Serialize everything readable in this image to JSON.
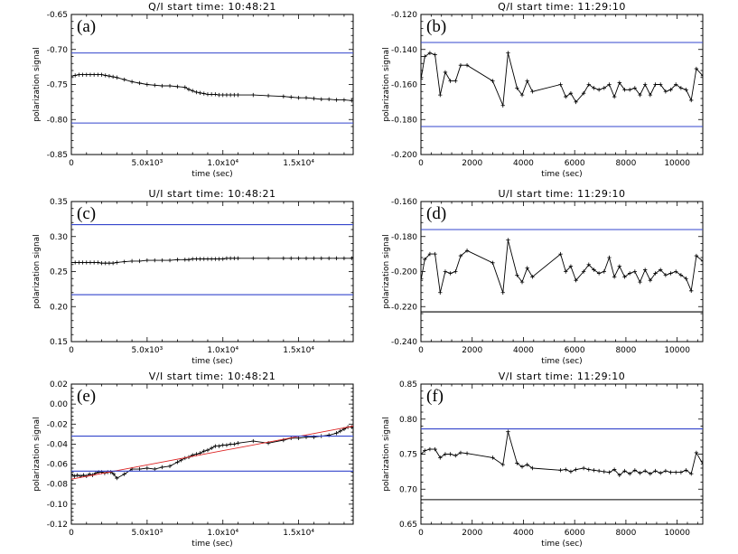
{
  "chart_data": [
    {
      "type": "line",
      "panel": "(a)",
      "title": "Q/I start time: 10:48:21",
      "xlabel": "time (sec)",
      "ylabel": "polarization signal",
      "xlim": [
        0,
        18600
      ],
      "ylim": [
        -0.85,
        -0.65
      ],
      "xticks": [
        0,
        5000,
        10000,
        15000
      ],
      "xtick_labels": [
        "0",
        "5.0x10³",
        "1.0x10⁴",
        "1.5x10⁴"
      ],
      "yticks": [
        -0.85,
        -0.8,
        -0.75,
        -0.7,
        -0.65
      ],
      "ytick_labels": [
        "-0.85",
        "-0.80",
        "-0.75",
        "-0.70",
        "-0.65"
      ],
      "series": [
        {
          "name": "data",
          "color": "#000000",
          "marker": "+",
          "x": [
            0,
            250,
            500,
            750,
            1000,
            1250,
            1500,
            1750,
            2000,
            2250,
            2500,
            2750,
            3000,
            3500,
            4000,
            4500,
            5000,
            5500,
            6000,
            6500,
            7000,
            7500,
            7750,
            8000,
            8250,
            8500,
            8750,
            9000,
            9250,
            9500,
            9750,
            10000,
            10250,
            10500,
            10750,
            11000,
            12000,
            13000,
            14000,
            14500,
            15000,
            15500,
            16000,
            16500,
            17000,
            17500,
            18000,
            18500
          ],
          "y": [
            -0.738,
            -0.737,
            -0.736,
            -0.736,
            -0.736,
            -0.736,
            -0.736,
            -0.736,
            -0.736,
            -0.737,
            -0.738,
            -0.739,
            -0.74,
            -0.743,
            -0.746,
            -0.748,
            -0.75,
            -0.751,
            -0.752,
            -0.752,
            -0.753,
            -0.754,
            -0.757,
            -0.759,
            -0.761,
            -0.762,
            -0.763,
            -0.764,
            -0.764,
            -0.764,
            -0.765,
            -0.765,
            -0.765,
            -0.765,
            -0.765,
            -0.765,
            -0.765,
            -0.766,
            -0.767,
            -0.768,
            -0.769,
            -0.769,
            -0.77,
            -0.771,
            -0.771,
            -0.772,
            -0.772,
            -0.773
          ]
        },
        {
          "name": "upper limit",
          "color": "#3344cc",
          "y_const": -0.705
        },
        {
          "name": "lower limit",
          "color": "#3344cc",
          "y_const": -0.805
        }
      ]
    },
    {
      "type": "line",
      "panel": "(b)",
      "title": "Q/I start time: 11:29:10",
      "xlabel": "time (sec)",
      "ylabel": "polarization signal",
      "xlim": [
        0,
        11000
      ],
      "ylim": [
        -0.2,
        -0.12
      ],
      "xticks": [
        0,
        2000,
        4000,
        6000,
        8000,
        10000
      ],
      "xtick_labels": [
        "0",
        "2000",
        "4000",
        "6000",
        "8000",
        "10000"
      ],
      "yticks": [
        -0.2,
        -0.18,
        -0.16,
        -0.14,
        -0.12
      ],
      "ytick_labels": [
        "-0.200",
        "-0.180",
        "-0.160",
        "-0.140",
        "-0.120"
      ],
      "series": [
        {
          "name": "data",
          "color": "#000000",
          "marker": "+",
          "x": [
            0,
            150,
            350,
            550,
            750,
            950,
            1150,
            1350,
            1550,
            1800,
            2800,
            3200,
            3400,
            3750,
            3950,
            4150,
            4350,
            5450,
            5650,
            5850,
            6050,
            6350,
            6550,
            6750,
            6950,
            7150,
            7350,
            7550,
            7750,
            7950,
            8150,
            8350,
            8550,
            8750,
            8950,
            9150,
            9350,
            9550,
            9750,
            9950,
            10150,
            10350,
            10550,
            10750,
            11000
          ],
          "y": [
            -0.157,
            -0.144,
            -0.142,
            -0.143,
            -0.166,
            -0.153,
            -0.158,
            -0.158,
            -0.149,
            -0.149,
            -0.158,
            -0.172,
            -0.142,
            -0.162,
            -0.166,
            -0.158,
            -0.164,
            -0.16,
            -0.167,
            -0.165,
            -0.17,
            -0.165,
            -0.16,
            -0.162,
            -0.163,
            -0.162,
            -0.16,
            -0.167,
            -0.159,
            -0.163,
            -0.163,
            -0.162,
            -0.166,
            -0.16,
            -0.166,
            -0.16,
            -0.16,
            -0.164,
            -0.163,
            -0.16,
            -0.162,
            -0.163,
            -0.169,
            -0.151,
            -0.155
          ]
        },
        {
          "name": "upper limit",
          "color": "#3344cc",
          "y_const": -0.136
        },
        {
          "name": "lower limit",
          "color": "#3344cc",
          "y_const": -0.184
        }
      ]
    },
    {
      "type": "line",
      "panel": "(c)",
      "title": "U/I start time: 10:48:21",
      "xlabel": "time (sec)",
      "ylabel": "polarization signal",
      "xlim": [
        0,
        18600
      ],
      "ylim": [
        0.15,
        0.35
      ],
      "xticks": [
        0,
        5000,
        10000,
        15000
      ],
      "xtick_labels": [
        "0",
        "5.0x10³",
        "1.0x10⁴",
        "1.5x10⁴"
      ],
      "yticks": [
        0.15,
        0.2,
        0.25,
        0.3,
        0.35
      ],
      "ytick_labels": [
        "0.15",
        "0.20",
        "0.25",
        "0.30",
        "0.35"
      ],
      "series": [
        {
          "name": "data",
          "color": "#000000",
          "marker": "+",
          "x": [
            0,
            250,
            500,
            750,
            1000,
            1250,
            1500,
            1750,
            2000,
            2250,
            2500,
            2750,
            3000,
            3500,
            4000,
            4500,
            5000,
            5500,
            6000,
            6500,
            7000,
            7500,
            7750,
            8000,
            8250,
            8500,
            8750,
            9000,
            9250,
            9500,
            9750,
            10000,
            10250,
            10500,
            10750,
            11000,
            12000,
            13000,
            14000,
            14500,
            15000,
            15500,
            16000,
            16500,
            17000,
            17500,
            18000,
            18500
          ],
          "y": [
            0.263,
            0.263,
            0.263,
            0.263,
            0.263,
            0.263,
            0.263,
            0.263,
            0.262,
            0.262,
            0.262,
            0.262,
            0.263,
            0.264,
            0.265,
            0.265,
            0.266,
            0.266,
            0.266,
            0.266,
            0.267,
            0.267,
            0.267,
            0.268,
            0.268,
            0.268,
            0.268,
            0.268,
            0.268,
            0.268,
            0.268,
            0.268,
            0.269,
            0.269,
            0.269,
            0.269,
            0.269,
            0.269,
            0.269,
            0.269,
            0.269,
            0.269,
            0.269,
            0.269,
            0.269,
            0.269,
            0.269,
            0.269
          ]
        },
        {
          "name": "upper limit",
          "color": "#3344cc",
          "y_const": 0.317
        },
        {
          "name": "lower limit",
          "color": "#3344cc",
          "y_const": 0.217
        }
      ]
    },
    {
      "type": "line",
      "panel": "(d)",
      "title": "U/I start time: 11:29:10",
      "xlabel": "time (sec)",
      "ylabel": "polarization signal",
      "xlim": [
        0,
        11000
      ],
      "ylim": [
        -0.24,
        -0.16
      ],
      "xticks": [
        0,
        2000,
        4000,
        6000,
        8000,
        10000
      ],
      "xtick_labels": [
        "0",
        "2000",
        "4000",
        "6000",
        "8000",
        "10000"
      ],
      "yticks": [
        -0.24,
        -0.22,
        -0.2,
        -0.18,
        -0.16
      ],
      "ytick_labels": [
        "-0.240",
        "-0.220",
        "-0.200",
        "-0.180",
        "-0.160"
      ],
      "series": [
        {
          "name": "data",
          "color": "#000000",
          "marker": "+",
          "x": [
            0,
            150,
            350,
            550,
            750,
            950,
            1150,
            1350,
            1550,
            1800,
            2800,
            3200,
            3400,
            3750,
            3950,
            4150,
            4350,
            5450,
            5650,
            5850,
            6050,
            6350,
            6550,
            6750,
            6950,
            7150,
            7350,
            7550,
            7750,
            7950,
            8150,
            8350,
            8550,
            8750,
            8950,
            9150,
            9350,
            9550,
            9750,
            9950,
            10150,
            10350,
            10550,
            10750,
            11000
          ],
          "y": [
            -0.205,
            -0.193,
            -0.19,
            -0.19,
            -0.212,
            -0.2,
            -0.201,
            -0.2,
            -0.191,
            -0.188,
            -0.195,
            -0.212,
            -0.182,
            -0.202,
            -0.206,
            -0.198,
            -0.203,
            -0.19,
            -0.2,
            -0.197,
            -0.205,
            -0.2,
            -0.196,
            -0.199,
            -0.201,
            -0.2,
            -0.192,
            -0.203,
            -0.197,
            -0.203,
            -0.201,
            -0.2,
            -0.206,
            -0.199,
            -0.205,
            -0.201,
            -0.199,
            -0.202,
            -0.201,
            -0.2,
            -0.202,
            -0.204,
            -0.211,
            -0.191,
            -0.194
          ]
        },
        {
          "name": "upper limit",
          "color": "#3344cc",
          "y_const": -0.176
        },
        {
          "name": "lower limit",
          "color": "#000000",
          "y_const": -0.223
        }
      ]
    },
    {
      "type": "line",
      "panel": "(e)",
      "title": "V/I start time: 10:48:21",
      "xlabel": "time (sec)",
      "ylabel": "polarization signal",
      "xlim": [
        0,
        18600
      ],
      "ylim": [
        -0.12,
        0.02
      ],
      "xticks": [
        0,
        5000,
        10000,
        15000
      ],
      "xtick_labels": [
        "0",
        "5.0x10³",
        "1.0x10⁴",
        "1.5x10⁴"
      ],
      "yticks": [
        -0.12,
        -0.1,
        -0.08,
        -0.06,
        -0.04,
        -0.02,
        0,
        0.02
      ],
      "ytick_labels": [
        "-0.12",
        "-0.10",
        "-0.08",
        "-0.06",
        "-0.04",
        "-0.02",
        "0.00",
        "0.02"
      ],
      "series": [
        {
          "name": "data",
          "color": "#000000",
          "marker": "+",
          "x": [
            0,
            200,
            400,
            600,
            800,
            1000,
            1200,
            1400,
            1600,
            1800,
            2000,
            2200,
            2400,
            2600,
            2800,
            3000,
            3500,
            4000,
            4500,
            5000,
            5500,
            6000,
            6500,
            7000,
            7250,
            7500,
            7750,
            8000,
            8250,
            8500,
            8750,
            9000,
            9250,
            9500,
            9750,
            10000,
            10250,
            10500,
            10750,
            11000,
            12000,
            13000,
            14000,
            14500,
            15000,
            15500,
            16000,
            16500,
            17000,
            17500,
            17750,
            18000,
            18250,
            18500
          ],
          "y": [
            -0.07,
            -0.072,
            -0.071,
            -0.072,
            -0.071,
            -0.072,
            -0.07,
            -0.071,
            -0.069,
            -0.068,
            -0.068,
            -0.069,
            -0.068,
            -0.068,
            -0.07,
            -0.074,
            -0.07,
            -0.065,
            -0.065,
            -0.064,
            -0.065,
            -0.063,
            -0.062,
            -0.058,
            -0.056,
            -0.054,
            -0.053,
            -0.051,
            -0.05,
            -0.049,
            -0.047,
            -0.046,
            -0.044,
            -0.042,
            -0.042,
            -0.041,
            -0.041,
            -0.04,
            -0.04,
            -0.039,
            -0.037,
            -0.039,
            -0.036,
            -0.034,
            -0.034,
            -0.033,
            -0.033,
            -0.032,
            -0.031,
            -0.029,
            -0.027,
            -0.025,
            -0.023,
            -0.023
          ]
        },
        {
          "name": "linear fit",
          "color": "#dd2222",
          "x": [
            0,
            18600
          ],
          "y": [
            -0.075,
            -0.022
          ]
        },
        {
          "name": "upper limit",
          "color": "#3344cc",
          "y_const": -0.032
        },
        {
          "name": "lower limit",
          "color": "#3344cc",
          "y_const": -0.067
        }
      ]
    },
    {
      "type": "line",
      "panel": "(f)",
      "title": "V/I start time: 11:29:10",
      "xlabel": "time (sec)",
      "ylabel": "polarization signal",
      "xlim": [
        0,
        11000
      ],
      "ylim": [
        0.65,
        0.85
      ],
      "xticks": [
        0,
        2000,
        4000,
        6000,
        8000,
        10000
      ],
      "xtick_labels": [
        "0",
        "2000",
        "4000",
        "6000",
        "8000",
        "10000"
      ],
      "yticks": [
        0.65,
        0.7,
        0.75,
        0.8,
        0.85
      ],
      "ytick_labels": [
        "0.65",
        "0.70",
        "0.75",
        "0.80",
        "0.85"
      ],
      "series": [
        {
          "name": "data",
          "color": "#000000",
          "marker": "+",
          "x": [
            0,
            150,
            350,
            550,
            750,
            950,
            1150,
            1350,
            1550,
            1800,
            2800,
            3200,
            3400,
            3750,
            3950,
            4150,
            4350,
            5450,
            5650,
            5850,
            6050,
            6350,
            6550,
            6750,
            6950,
            7150,
            7350,
            7550,
            7750,
            7950,
            8150,
            8350,
            8550,
            8750,
            8950,
            9150,
            9350,
            9550,
            9750,
            9950,
            10150,
            10350,
            10550,
            10750,
            11000
          ],
          "y": [
            0.75,
            0.755,
            0.757,
            0.757,
            0.745,
            0.75,
            0.75,
            0.748,
            0.752,
            0.751,
            0.745,
            0.735,
            0.782,
            0.737,
            0.732,
            0.735,
            0.73,
            0.727,
            0.728,
            0.725,
            0.728,
            0.73,
            0.728,
            0.727,
            0.726,
            0.725,
            0.724,
            0.728,
            0.72,
            0.726,
            0.722,
            0.727,
            0.723,
            0.726,
            0.722,
            0.726,
            0.723,
            0.726,
            0.724,
            0.724,
            0.724,
            0.727,
            0.722,
            0.752,
            0.736
          ]
        },
        {
          "name": "upper limit",
          "color": "#3344cc",
          "y_const": 0.786
        },
        {
          "name": "lower limit",
          "color": "#000000",
          "y_const": 0.685
        }
      ]
    }
  ]
}
